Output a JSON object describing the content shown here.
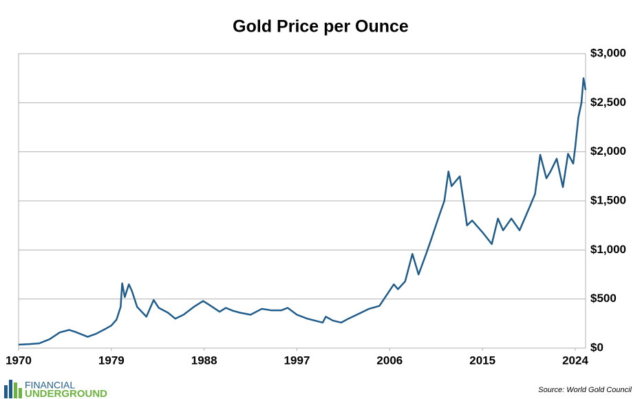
{
  "chart_data": {
    "type": "line",
    "title": "Gold Price per Ounce",
    "source": "Source: World Gold Council",
    "color": "#1f5c8b",
    "grid": true,
    "xlim": [
      1970,
      2025
    ],
    "xticks": [
      1970,
      1979,
      1988,
      1997,
      2006,
      2015,
      2024
    ],
    "ylim": [
      0,
      3000
    ],
    "yticks": [
      {
        "value": 0,
        "label": "$0"
      },
      {
        "value": 500,
        "label": "$500"
      },
      {
        "value": 1000,
        "label": "$1,000"
      },
      {
        "value": 1500,
        "label": "$1,500"
      },
      {
        "value": 2000,
        "label": "$2,000"
      },
      {
        "value": 2500,
        "label": "$2,500"
      },
      {
        "value": 3000,
        "label": "$3,000"
      }
    ],
    "x": [
      1970,
      1971,
      1972,
      1973,
      1974,
      1974.9,
      1975.5,
      1976.7,
      1977.5,
      1978.5,
      1979,
      1979.5,
      1979.9,
      1980.05,
      1980.3,
      1980.7,
      1981,
      1981.5,
      1982.4,
      1983.1,
      1983.6,
      1984.5,
      1985.2,
      1986,
      1987,
      1987.9,
      1988.5,
      1989.5,
      1990.1,
      1990.8,
      1991.5,
      1992.5,
      1993.6,
      1994.5,
      1995.5,
      1996.1,
      1997,
      1998,
      1999.5,
      1999.8,
      2000.5,
      2001.3,
      2002,
      2003,
      2004,
      2005,
      2006.4,
      2006.8,
      2007.5,
      2008.2,
      2008.8,
      2009.5,
      2010,
      2010.8,
      2011.3,
      2011.7,
      2012,
      2012.8,
      2013.3,
      2013.5,
      2014,
      2015,
      2015.9,
      2016.5,
      2017,
      2017.8,
      2018.6,
      2019.5,
      2020.1,
      2020.6,
      2021.2,
      2021.6,
      2022.2,
      2022.8,
      2023.3,
      2023.8,
      2024,
      2024.3,
      2024.6,
      2024.8,
      2025
    ],
    "values": [
      35,
      40,
      48,
      90,
      160,
      185,
      165,
      115,
      145,
      200,
      230,
      290,
      420,
      660,
      520,
      650,
      580,
      420,
      320,
      490,
      410,
      360,
      300,
      340,
      420,
      480,
      440,
      370,
      410,
      380,
      360,
      340,
      400,
      385,
      385,
      410,
      340,
      300,
      260,
      320,
      280,
      260,
      300,
      350,
      400,
      430,
      650,
      600,
      680,
      960,
      750,
      950,
      1100,
      1350,
      1500,
      1800,
      1650,
      1750,
      1400,
      1250,
      1300,
      1180,
      1060,
      1320,
      1200,
      1320,
      1200,
      1420,
      1570,
      1970,
      1730,
      1800,
      1930,
      1640,
      1980,
      1880,
      2050,
      2350,
      2500,
      2750,
      2630
    ]
  },
  "logo": {
    "line1": "FINANCIAL",
    "line2": "UNDERGROUND"
  }
}
